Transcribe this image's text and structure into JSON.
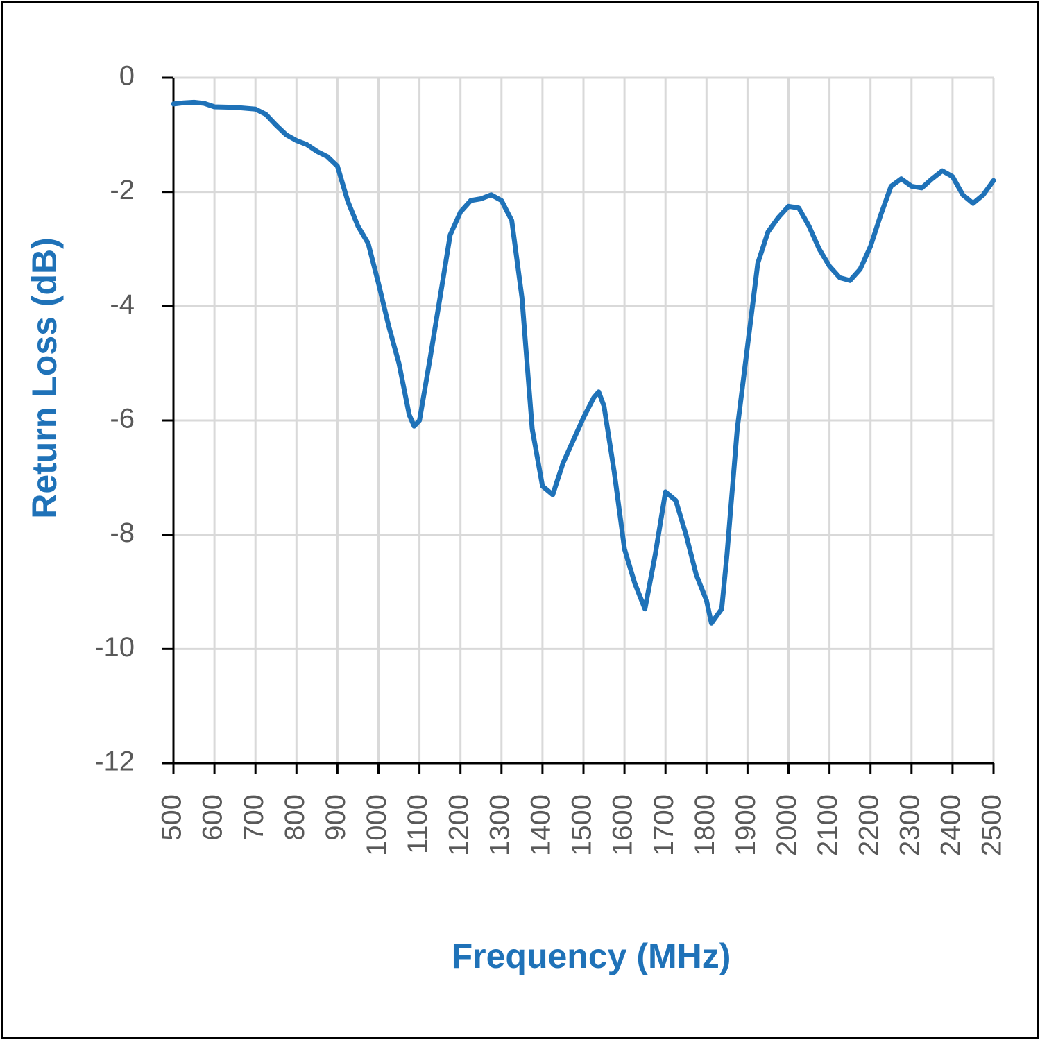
{
  "chart_data": {
    "type": "line",
    "x_label": "Frequency (MHz)",
    "y_label": "Return Loss (dB)",
    "x": [
      500,
      525,
      550,
      575,
      600,
      650,
      700,
      725,
      750,
      775,
      800,
      825,
      850,
      875,
      900,
      925,
      950,
      975,
      1000,
      1025,
      1050,
      1075,
      1087,
      1100,
      1125,
      1150,
      1175,
      1200,
      1225,
      1250,
      1275,
      1300,
      1325,
      1350,
      1375,
      1400,
      1425,
      1450,
      1475,
      1500,
      1525,
      1537,
      1550,
      1575,
      1600,
      1625,
      1650,
      1675,
      1700,
      1725,
      1750,
      1775,
      1800,
      1812,
      1837,
      1850,
      1875,
      1900,
      1925,
      1950,
      1975,
      2000,
      2025,
      2050,
      2075,
      2100,
      2125,
      2150,
      2175,
      2200,
      2225,
      2250,
      2275,
      2300,
      2325,
      2350,
      2375,
      2400,
      2425,
      2450,
      2475,
      2500
    ],
    "series": [
      {
        "color": "#1f72b8",
        "values": [
          -0.46,
          -0.44,
          -0.43,
          -0.45,
          -0.51,
          -0.52,
          -0.55,
          -0.64,
          -0.83,
          -1.0,
          -1.1,
          -1.17,
          -1.29,
          -1.38,
          -1.55,
          -2.16,
          -2.6,
          -2.9,
          -3.6,
          -4.35,
          -5.0,
          -5.9,
          -6.1,
          -6.0,
          -4.95,
          -3.85,
          -2.75,
          -2.35,
          -2.15,
          -2.12,
          -2.05,
          -2.15,
          -2.5,
          -3.85,
          -6.15,
          -7.15,
          -7.3,
          -6.75,
          -6.35,
          -5.95,
          -5.6,
          -5.5,
          -5.75,
          -6.9,
          -8.25,
          -8.85,
          -9.3,
          -8.35,
          -7.25,
          -7.4,
          -8.0,
          -8.7,
          -9.15,
          -9.55,
          -9.3,
          -8.35,
          -6.15,
          -4.7,
          -3.25,
          -2.7,
          -2.45,
          -2.25,
          -2.28,
          -2.6,
          -3.0,
          -3.3,
          -3.5,
          -3.55,
          -3.35,
          -2.95,
          -2.4,
          -1.9,
          -1.77,
          -1.9,
          -1.93,
          -1.77,
          -1.63,
          -1.73,
          -2.05,
          -2.2,
          -2.05,
          -1.8
        ]
      }
    ],
    "xlim": [
      500,
      2500
    ],
    "xticks": [
      500,
      600,
      700,
      800,
      900,
      1000,
      1100,
      1200,
      1300,
      1400,
      1500,
      1600,
      1700,
      1800,
      1900,
      2000,
      2100,
      2200,
      2300,
      2400,
      2500
    ],
    "ylim": [
      -12,
      0
    ],
    "yticks": [
      0,
      -2,
      -4,
      -6,
      -8,
      -10,
      -12
    ],
    "grid": true
  }
}
